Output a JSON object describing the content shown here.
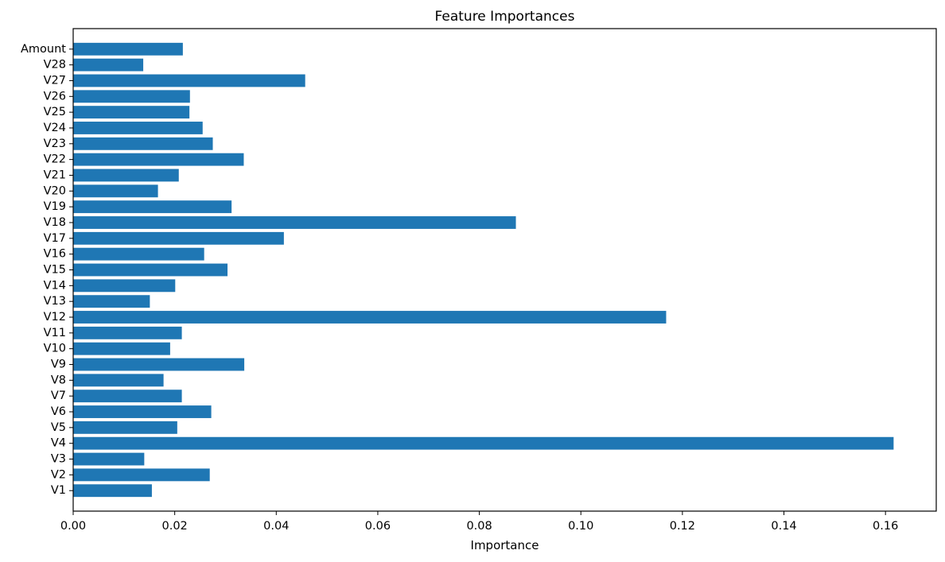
{
  "chart_data": {
    "type": "bar",
    "orientation": "horizontal",
    "title": "Feature Importances",
    "xlabel": "Importance",
    "ylabel": "",
    "xlim": [
      0,
      0.17
    ],
    "xticks": [
      "0.00",
      "0.02",
      "0.04",
      "0.06",
      "0.08",
      "0.10",
      "0.12",
      "0.14",
      "0.16"
    ],
    "grid": false,
    "legend": "none",
    "bar_color": "#1f77b4",
    "categories": [
      "V1",
      "V2",
      "V3",
      "V4",
      "V5",
      "V6",
      "V7",
      "V8",
      "V9",
      "V10",
      "V11",
      "V12",
      "V13",
      "V14",
      "V15",
      "V16",
      "V17",
      "V18",
      "V19",
      "V20",
      "V21",
      "V22",
      "V23",
      "V24",
      "V25",
      "V26",
      "V27",
      "V28",
      "Amount"
    ],
    "values": [
      0.0155,
      0.0269,
      0.014,
      0.1616,
      0.0205,
      0.0272,
      0.0214,
      0.0178,
      0.0337,
      0.0191,
      0.0214,
      0.1168,
      0.0151,
      0.0201,
      0.0304,
      0.0258,
      0.0415,
      0.0872,
      0.0312,
      0.0167,
      0.0208,
      0.0336,
      0.0275,
      0.0255,
      0.0229,
      0.023,
      0.0457,
      0.0138,
      0.0216
    ]
  }
}
